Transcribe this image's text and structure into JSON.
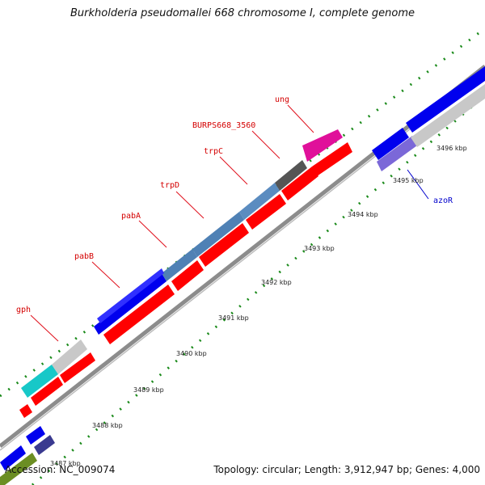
{
  "title": "Burkholderia pseudomallei 668 chromosome I, complete genome",
  "footer": {
    "accession": "Accession: NC_009074",
    "summary": "Topology: circular; Length: 3,912,947 bp; Genes: 4,000"
  },
  "colors": {
    "backbone": "#8c8c8c",
    "tick": "#1a8a1a",
    "label_red": "#d40000",
    "label_blue": "#0000cc",
    "leader": "#e0101c",
    "leader_blue": "#0000cc",
    "blue": "#0000ee",
    "steel": "#4f81b5",
    "red": "#ff0000",
    "magenta": "#e0109a",
    "gray_dark": "#555555",
    "gray_light": "#c8c8c8",
    "cyan": "#17c8c8",
    "violet": "#7b68d8",
    "navy_purple": "#3a3a90",
    "olive": "#6b8e23"
  },
  "ticks": [
    {
      "kbp": 3488,
      "label": "3488 kbp"
    },
    {
      "kbp": 3489,
      "label": "3489 kbp"
    },
    {
      "kbp": 3490,
      "label": "3490 kbp"
    },
    {
      "kbp": 3491,
      "label": "3491 kbp"
    },
    {
      "kbp": 3492,
      "label": "3492 kbp"
    },
    {
      "kbp": 3493,
      "label": "3493 kbp"
    },
    {
      "kbp": 3494,
      "label": "3494 kbp"
    },
    {
      "kbp": 3495,
      "label": "3495 kbp"
    },
    {
      "kbp": 3496,
      "label": "3496 kbp"
    },
    {
      "kbp": 3487,
      "label": "3487 kbp"
    }
  ],
  "gene_labels": [
    {
      "name": "gph",
      "color_key": "label_red"
    },
    {
      "name": "pabB",
      "color_key": "label_red"
    },
    {
      "name": "pabA",
      "color_key": "label_red"
    },
    {
      "name": "trpD",
      "color_key": "label_red"
    },
    {
      "name": "trpC",
      "color_key": "label_red"
    },
    {
      "name": "BURPS668_3560",
      "color_key": "label_red"
    },
    {
      "name": "ung",
      "color_key": "label_red"
    },
    {
      "name": "azoR",
      "color_key": "label_blue"
    }
  ],
  "features": [
    {
      "name": "outer-olive-bottom",
      "color_key": "olive"
    },
    {
      "name": "outer-blue-bottom",
      "color_key": "blue"
    },
    {
      "name": "outer-blue-small",
      "color_key": "blue"
    },
    {
      "name": "outer-purple-small",
      "color_key": "navy_purple"
    },
    {
      "name": "gph-cyan",
      "color_key": "cyan"
    },
    {
      "name": "gph-gray",
      "color_key": "gray_light"
    },
    {
      "name": "red-arrow-1",
      "color_key": "red"
    },
    {
      "name": "red-arrow-small",
      "color_key": "red"
    },
    {
      "name": "pabB-blue",
      "color_key": "blue"
    },
    {
      "name": "pabA-steel",
      "color_key": "steel"
    },
    {
      "name": "pabA-blue",
      "color_key": "blue"
    },
    {
      "name": "trpD-steel",
      "color_key": "steel"
    },
    {
      "name": "trpC-steel",
      "color_key": "steel"
    },
    {
      "name": "burps-gray",
      "color_key": "gray_dark"
    },
    {
      "name": "ung-magenta",
      "color_key": "magenta"
    },
    {
      "name": "red-arrow-2",
      "color_key": "red"
    },
    {
      "name": "red-arrow-3",
      "color_key": "red"
    },
    {
      "name": "red-arrow-4",
      "color_key": "red"
    },
    {
      "name": "red-arrow-5",
      "color_key": "red"
    },
    {
      "name": "red-arrow-6",
      "color_key": "red"
    },
    {
      "name": "red-arrow-7",
      "color_key": "red"
    },
    {
      "name": "azoR-blue",
      "color_key": "blue"
    },
    {
      "name": "azoR-violet",
      "color_key": "violet"
    },
    {
      "name": "right-blue-large",
      "color_key": "blue"
    },
    {
      "name": "right-gray-large",
      "color_key": "gray_light"
    }
  ]
}
